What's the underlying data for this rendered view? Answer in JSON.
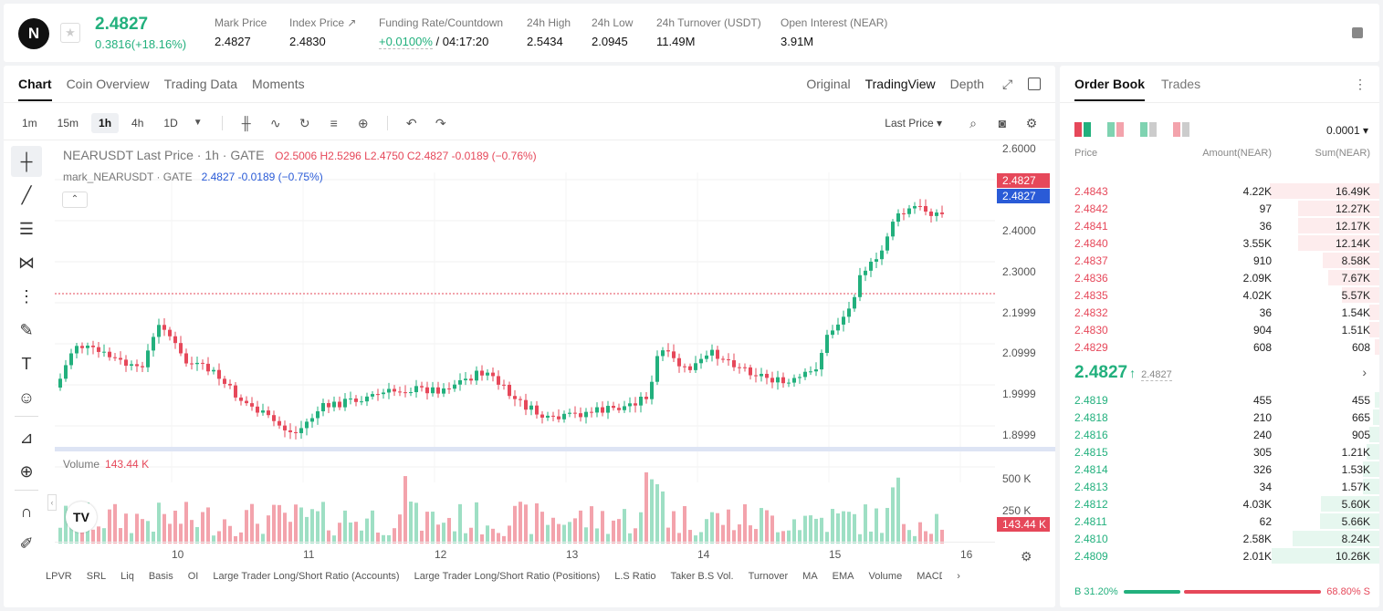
{
  "ticker": {
    "logo": "N",
    "last_price": "2.4827",
    "change": "0.3816(+18.16%)",
    "stats": [
      {
        "label": "Mark Price",
        "value": "2.4827"
      },
      {
        "label": "Index Price ↗",
        "value": "2.4830"
      },
      {
        "label": "Funding Rate/Countdown",
        "value_rate": "+0.0100%",
        "value_countdown": "/ 04:17:20"
      },
      {
        "label": "24h High",
        "value": "2.5434"
      },
      {
        "label": "24h Low",
        "value": "2.0945"
      },
      {
        "label": "24h Turnover (USDT)",
        "value": "11.49M"
      },
      {
        "label": "Open Interest (NEAR)",
        "value": "3.91M"
      }
    ]
  },
  "chart_tabs": [
    "Chart",
    "Coin Overview",
    "Trading Data",
    "Moments"
  ],
  "view_tabs": [
    "Original",
    "TradingView",
    "Depth"
  ],
  "timeframes": [
    "1m",
    "15m",
    "1h",
    "4h",
    "1D"
  ],
  "last_price_select": "Last Price ▾",
  "legend": {
    "title": "NEARUSDT Last Price · 1h · GATE",
    "ohlc": "O2.5006  H2.5296  L2.4750  C2.4827  -0.0189 (−0.76%)",
    "mark": "mark_NEARUSDT · GATE",
    "mark_vals": "2.4827  -0.0189 (−0.75%)",
    "volume_label": "Volume",
    "volume_value": "143.44 K"
  },
  "y_axis": [
    "2.6000",
    "2.4000",
    "2.3000",
    "2.1999",
    "2.0999",
    "1.9999",
    "1.8999"
  ],
  "price_tags": {
    "last": "2.4827",
    "mark": "2.4827",
    "volume": "143.44 K"
  },
  "vol_axis": [
    "500 K",
    "250 K"
  ],
  "x_axis": [
    "10",
    "11",
    "12",
    "13",
    "14",
    "15",
    "16"
  ],
  "bottom_indicators": [
    "LPVR",
    "SRL",
    "Liq",
    "Basis",
    "OI",
    "Large Trader Long/Short Ratio (Accounts)",
    "Large Trader Long/Short Ratio (Positions)",
    "L.S Ratio",
    "Taker B.S Vol.",
    "Turnover",
    "MA",
    "EMA",
    "Volume",
    "MACD"
  ],
  "orderbook": {
    "tabs": [
      "Order Book",
      "Trades"
    ],
    "precision": "0.0001 ▾",
    "headers": [
      "Price",
      "Amount(NEAR)",
      "Sum(NEAR)"
    ],
    "asks": [
      {
        "price": "2.4843",
        "amount": "4.22K",
        "sum": "16.49K",
        "depth": 1.0
      },
      {
        "price": "2.4842",
        "amount": "97",
        "sum": "12.27K",
        "depth": 0.74
      },
      {
        "price": "2.4841",
        "amount": "36",
        "sum": "12.17K",
        "depth": 0.74
      },
      {
        "price": "2.4840",
        "amount": "3.55K",
        "sum": "12.14K",
        "depth": 0.74
      },
      {
        "price": "2.4837",
        "amount": "910",
        "sum": "8.58K",
        "depth": 0.52
      },
      {
        "price": "2.4836",
        "amount": "2.09K",
        "sum": "7.67K",
        "depth": 0.47
      },
      {
        "price": "2.4835",
        "amount": "4.02K",
        "sum": "5.57K",
        "depth": 0.34
      },
      {
        "price": "2.4832",
        "amount": "36",
        "sum": "1.54K",
        "depth": 0.09
      },
      {
        "price": "2.4830",
        "amount": "904",
        "sum": "1.51K",
        "depth": 0.09
      },
      {
        "price": "2.4829",
        "amount": "608",
        "sum": "608",
        "depth": 0.04
      }
    ],
    "mid_price": "2.4827",
    "mid_arrow": "↑",
    "mid_ref": "2.4827",
    "bids": [
      {
        "price": "2.4819",
        "amount": "455",
        "sum": "455",
        "depth": 0.04
      },
      {
        "price": "2.4818",
        "amount": "210",
        "sum": "665",
        "depth": 0.06
      },
      {
        "price": "2.4816",
        "amount": "240",
        "sum": "905",
        "depth": 0.09
      },
      {
        "price": "2.4815",
        "amount": "305",
        "sum": "1.21K",
        "depth": 0.12
      },
      {
        "price": "2.4814",
        "amount": "326",
        "sum": "1.53K",
        "depth": 0.15
      },
      {
        "price": "2.4813",
        "amount": "34",
        "sum": "1.57K",
        "depth": 0.15
      },
      {
        "price": "2.4812",
        "amount": "4.03K",
        "sum": "5.60K",
        "depth": 0.53
      },
      {
        "price": "2.4811",
        "amount": "62",
        "sum": "5.66K",
        "depth": 0.54
      },
      {
        "price": "2.4810",
        "amount": "2.58K",
        "sum": "8.24K",
        "depth": 0.79
      },
      {
        "price": "2.4809",
        "amount": "2.01K",
        "sum": "10.26K",
        "depth": 0.98
      }
    ],
    "buy_ratio": "B 31.20%",
    "sell_ratio": "68.80% S",
    "buy_pct": 31.2
  },
  "colors": {
    "up": "#22b07d",
    "down": "#e6485a",
    "mark": "#2a5bd7"
  }
}
